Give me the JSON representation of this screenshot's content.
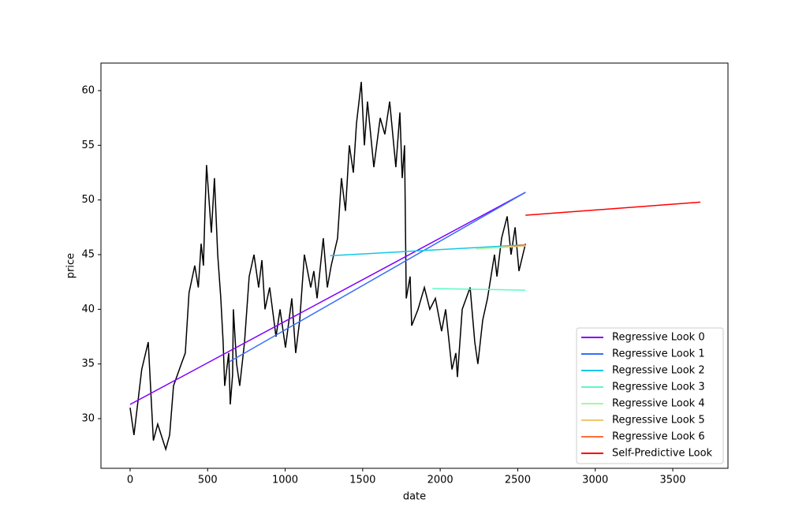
{
  "chart_data": {
    "type": "line",
    "x_label": "date",
    "y_label": "price",
    "xlim": [
      -188,
      3856
    ],
    "ylim": [
      25.46,
      62.52
    ],
    "xticks": [
      0,
      500,
      1000,
      1500,
      2000,
      2500,
      3000,
      3500
    ],
    "yticks": [
      30,
      35,
      40,
      45,
      50,
      55,
      60
    ],
    "legend": "lower right",
    "series": [
      {
        "color": "#000000",
        "x": [
          0,
          25,
          75,
          117,
          150,
          178,
          230,
          255,
          280,
          330,
          356,
          380,
          417,
          440,
          458,
          473,
          483,
          493,
          524,
          544,
          565,
          585,
          600,
          610,
          636,
          646,
          661,
          666,
          687,
          707,
          738,
          768,
          799,
          829,
          850,
          870,
          900,
          941,
          967,
          1002,
          1043,
          1068,
          1094,
          1124,
          1165,
          1185,
          1206,
          1246,
          1272,
          1297,
          1338,
          1363,
          1389,
          1414,
          1440,
          1460,
          1491,
          1511,
          1531,
          1572,
          1613,
          1643,
          1674,
          1714,
          1740,
          1755,
          1770,
          1781,
          1806,
          1816,
          1857,
          1898,
          1933,
          1969,
          2009,
          2035,
          2076,
          2101,
          2111,
          2142,
          2193,
          2223,
          2243,
          2274,
          2305,
          2350,
          2366,
          2396,
          2432,
          2457,
          2483,
          2508,
          2550
        ],
        "values": [
          31,
          28.5,
          34.5,
          37,
          28,
          29.5,
          27.2,
          28.5,
          33,
          35,
          36,
          41.5,
          44,
          42,
          46,
          44,
          49,
          53.2,
          47,
          52,
          45,
          41,
          37,
          33,
          36,
          31.3,
          34,
          40,
          35,
          33,
          37,
          43,
          45,
          42,
          44.5,
          40,
          42,
          37.5,
          40,
          36.5,
          41,
          36,
          39,
          45,
          42,
          43.5,
          41,
          46.5,
          42,
          44,
          46.5,
          52,
          49,
          55,
          52.5,
          57,
          60.8,
          55,
          59,
          53,
          57.5,
          56,
          59,
          53,
          58,
          52,
          55,
          41,
          43,
          38.5,
          40,
          42,
          40,
          41,
          38,
          40,
          34.5,
          36,
          33.8,
          40,
          42,
          37,
          35,
          39,
          41,
          45,
          43,
          46.5,
          48.5,
          45,
          47.5,
          43.5,
          46
        ]
      },
      {
        "name": "Regressive Look 0",
        "color": "#8000ff",
        "x": [
          0,
          2550
        ],
        "values": [
          31.3,
          50.7
        ]
      },
      {
        "name": "Regressive Look 1",
        "color": "#376ef9",
        "x": [
          640,
          2550
        ],
        "values": [
          35.2,
          50.7
        ]
      },
      {
        "name": "Regressive Look 2",
        "color": "#12c7e6",
        "x": [
          1290,
          2550
        ],
        "values": [
          44.9,
          45.9
        ]
      },
      {
        "name": "Regressive Look 3",
        "color": "#5bf9c7",
        "x": [
          1950,
          2550
        ],
        "values": [
          41.9,
          41.75
        ]
      },
      {
        "name": "Regressive Look 4",
        "color": "#a4f99f",
        "x": [
          2230,
          2550
        ],
        "values": [
          45.5,
          45.8
        ]
      },
      {
        "name": "Regressive Look 5",
        "color": "#edc76f",
        "x": [
          2390,
          2550
        ],
        "values": [
          45.7,
          45.8
        ]
      },
      {
        "name": "Regressive Look 6",
        "color": "#ff6e39",
        "x": [
          2470,
          2550
        ],
        "values": [
          45.8,
          45.9
        ]
      },
      {
        "name": "Self-Predictive Look",
        "color": "#ff0000",
        "x": [
          2550,
          3678
        ],
        "values": [
          48.6,
          49.8
        ]
      }
    ]
  }
}
